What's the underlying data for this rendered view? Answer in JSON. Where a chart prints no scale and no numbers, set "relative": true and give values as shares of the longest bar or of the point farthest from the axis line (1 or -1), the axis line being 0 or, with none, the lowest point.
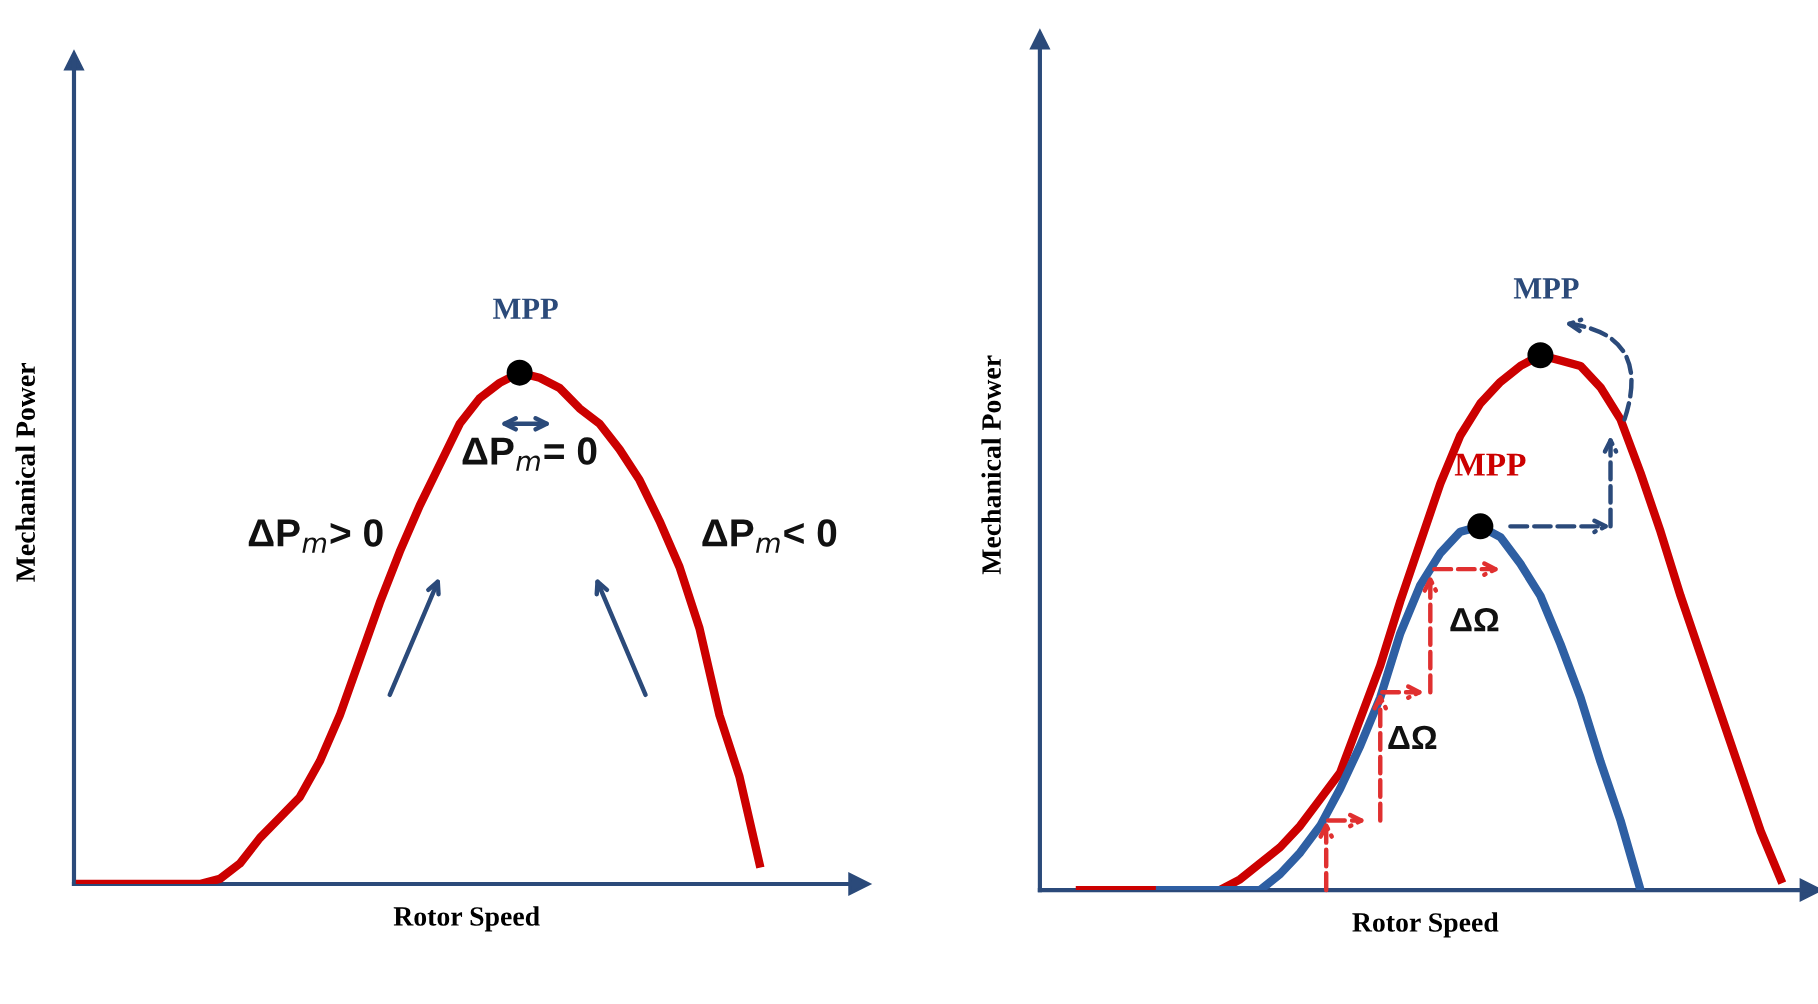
{
  "chart_data": [
    {
      "type": "line",
      "relative": true,
      "xlabel": "Rotor Speed",
      "ylabel": "Mechanical Power",
      "categories": [
        null,
        null,
        null,
        null,
        null,
        null,
        null,
        null,
        null,
        null,
        null,
        null,
        null,
        null,
        null,
        null,
        null,
        null,
        null,
        null,
        null,
        null,
        null,
        null,
        null,
        null,
        null,
        null,
        null,
        null,
        null,
        null,
        null,
        null,
        null,
        null,
        null,
        null,
        null,
        null
      ],
      "series": [
        {
          "color": "#cc0000",
          "values": [
            0,
            0,
            0,
            0,
            0,
            0,
            0,
            0.01,
            0.04,
            0.09,
            0.13,
            0.17,
            0.24,
            0.33,
            0.44,
            0.55,
            0.65,
            0.74,
            0.82,
            0.9,
            0.95,
            0.98,
            1.0,
            0.99,
            0.97,
            0.93,
            0.9,
            0.85,
            0.79,
            0.71,
            0.62,
            0.5,
            0.33,
            0.21,
            0.04,
            null,
            null,
            null,
            null,
            null
          ]
        }
      ],
      "annotations": [
        "MPP",
        "ΔP$_{m}$= 0",
        "ΔP$_{m}$> 0",
        "ΔP$_{m}$< 0"
      ]
    },
    {
      "type": "line",
      "relative": true,
      "xlabel": "Rotor Speed",
      "ylabel": "Mechanical Power",
      "categories": [
        null,
        null,
        null,
        null,
        null,
        null,
        null,
        null,
        null,
        null,
        null,
        null,
        null,
        null,
        null,
        null,
        null,
        null,
        null,
        null,
        null,
        null,
        null,
        null,
        null,
        null,
        null,
        null,
        null,
        null,
        null,
        null,
        null,
        null,
        null,
        null,
        null
      ],
      "series": [
        {
          "color": "#cc0000",
          "values": [
            0,
            0,
            0,
            0,
            0,
            0,
            0,
            0,
            0.02,
            0.05,
            0.08,
            0.12,
            0.17,
            0.22,
            0.32,
            0.42,
            0.54,
            0.65,
            0.76,
            0.85,
            0.91,
            0.95,
            0.98,
            1.0,
            0.99,
            0.98,
            0.94,
            0.88,
            0.78,
            0.67,
            0.55,
            0.44,
            0.33,
            0.22,
            0.11,
            0.02,
            null
          ]
        },
        {
          "color": "#2e5fa3",
          "values": [
            null,
            null,
            null,
            null,
            0,
            0,
            0,
            0,
            0,
            0,
            0.03,
            0.07,
            0.12,
            0.19,
            0.27,
            0.36,
            0.48,
            0.57,
            0.63,
            0.67,
            0.68,
            0.66,
            0.61,
            0.55,
            0.46,
            0.36,
            0.24,
            0.13,
            0,
            null,
            null,
            null,
            null,
            null,
            null,
            null,
            null
          ]
        }
      ],
      "annotations": [
        "MPP",
        "MPP",
        "ΔΩ",
        "ΔΩ"
      ]
    }
  ]
}
